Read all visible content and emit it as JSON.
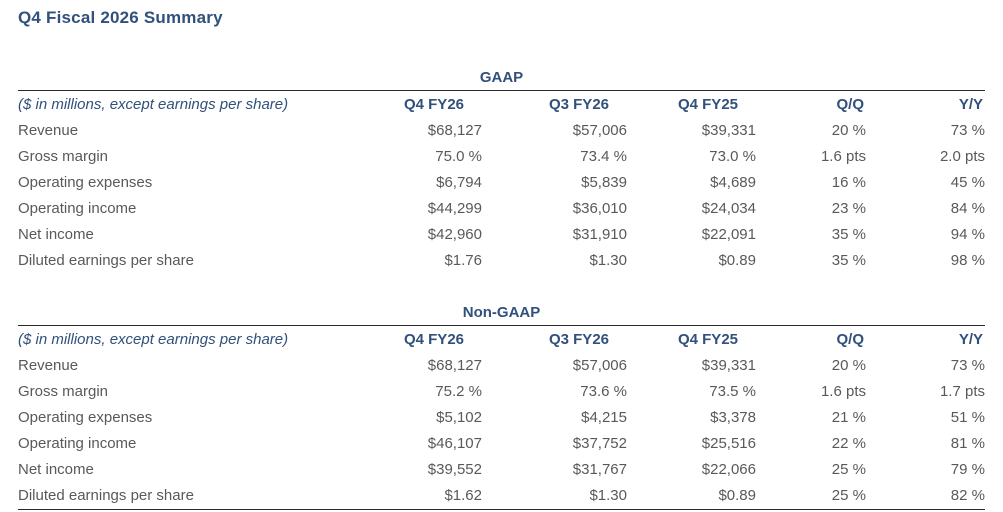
{
  "page": {
    "title": "Q4 Fiscal 2026 Summary"
  },
  "table_note": "($ in millions, except earnings per share)",
  "columns": [
    "Q4 FY26",
    "Q3 FY26",
    "Q4 FY25",
    "Q/Q",
    "Y/Y"
  ],
  "sections": [
    {
      "heading": "GAAP",
      "rows": [
        {
          "label": "Revenue",
          "values": [
            "$68,127",
            "$57,006",
            "$39,331",
            "20 %",
            "73 %"
          ]
        },
        {
          "label": "Gross margin",
          "values": [
            "75.0 %",
            "73.4 %",
            "73.0 %",
            "1.6 pts",
            "2.0 pts"
          ]
        },
        {
          "label": "Operating expenses",
          "values": [
            "$6,794",
            "$5,839",
            "$4,689",
            "16 %",
            "45 %"
          ]
        },
        {
          "label": "Operating income",
          "values": [
            "$44,299",
            "$36,010",
            "$24,034",
            "23 %",
            "84 %"
          ]
        },
        {
          "label": "Net income",
          "values": [
            "$42,960",
            "$31,910",
            "$22,091",
            "35 %",
            "94 %"
          ]
        },
        {
          "label": "Diluted earnings per share",
          "values": [
            "$1.76",
            "$1.30",
            "$0.89",
            "35 %",
            "98 %"
          ]
        }
      ]
    },
    {
      "heading": "Non-GAAP",
      "rows": [
        {
          "label": "Revenue",
          "values": [
            "$68,127",
            "$57,006",
            "$39,331",
            "20 %",
            "73 %"
          ]
        },
        {
          "label": "Gross margin",
          "values": [
            "75.2 %",
            "73.6 %",
            "73.5 %",
            "1.6 pts",
            "1.7 pts"
          ]
        },
        {
          "label": "Operating expenses",
          "values": [
            "$5,102",
            "$4,215",
            "$3,378",
            "21 %",
            "51 %"
          ]
        },
        {
          "label": "Operating income",
          "values": [
            "$46,107",
            "$37,752",
            "$25,516",
            "22 %",
            "81 %"
          ]
        },
        {
          "label": "Net income",
          "values": [
            "$39,552",
            "$31,767",
            "$22,066",
            "25 %",
            "79 %"
          ]
        },
        {
          "label": "Diluted earnings per share",
          "values": [
            "$1.62",
            "$1.30",
            "$0.89",
            "25 %",
            "82 %"
          ]
        }
      ]
    }
  ],
  "colors": {
    "heading_color": "#31507b",
    "body_color": "#58595b",
    "rule_color": "#2b2b2b",
    "bg_color": "#ffffff"
  }
}
